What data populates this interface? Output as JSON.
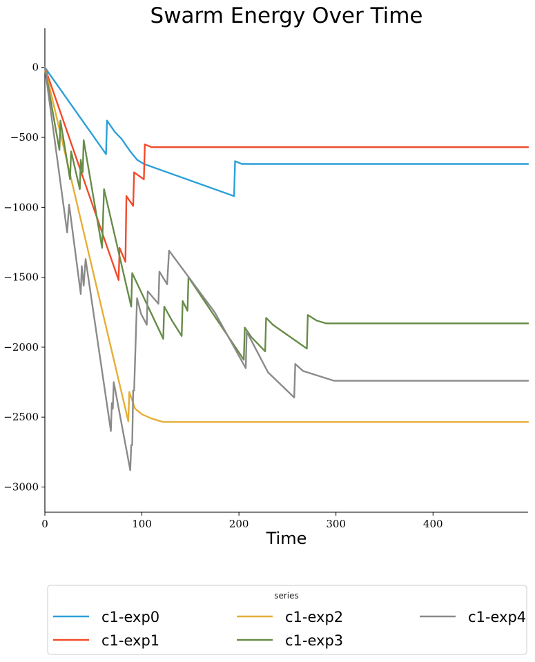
{
  "chart_data": {
    "type": "line",
    "title": "Swarm Energy Over Time",
    "xlabel": "Time",
    "ylabel": "",
    "xlim": [
      0,
      498
    ],
    "ylim": [
      -3180,
      280
    ],
    "xticks": [
      0,
      100,
      200,
      300,
      400
    ],
    "yticks": [
      0,
      -500,
      -1000,
      -1500,
      -2000,
      -2500,
      -3000
    ],
    "xtick_labels": [
      "0",
      "100",
      "200",
      "300",
      "400"
    ],
    "ytick_labels": [
      "0",
      "−500",
      "−1000",
      "−1500",
      "−2000",
      "−2500",
      "−3000"
    ],
    "grid": false,
    "legend": {
      "title": "series",
      "placement": "below plot",
      "columns": 3
    },
    "series": [
      {
        "name": "c1-exp0",
        "color": "#2ca0d8",
        "points": [
          [
            0,
            0
          ],
          [
            63,
            -620
          ],
          [
            64,
            -380
          ],
          [
            72,
            -460
          ],
          [
            79,
            -510
          ],
          [
            88,
            -600
          ],
          [
            95,
            -660
          ],
          [
            102,
            -690
          ],
          [
            195,
            -920
          ],
          [
            196,
            -670
          ],
          [
            203,
            -690
          ],
          [
            498,
            -690
          ]
        ]
      },
      {
        "name": "c1-exp1",
        "color": "#f24a2a",
        "points": [
          [
            0,
            0
          ],
          [
            76,
            -1520
          ],
          [
            77,
            -1290
          ],
          [
            83,
            -1390
          ],
          [
            84,
            -920
          ],
          [
            91,
            -990
          ],
          [
            92,
            -750
          ],
          [
            102,
            -800
          ],
          [
            103,
            -550
          ],
          [
            110,
            -570
          ],
          [
            498,
            -570
          ]
        ]
      },
      {
        "name": "c1-exp2",
        "color": "#e6ae35",
        "points": [
          [
            0,
            0
          ],
          [
            86,
            -2530
          ],
          [
            87,
            -2320
          ],
          [
            93,
            -2440
          ],
          [
            100,
            -2480
          ],
          [
            110,
            -2510
          ],
          [
            122,
            -2535
          ],
          [
            498,
            -2535
          ]
        ]
      },
      {
        "name": "c1-exp3",
        "color": "#678c48",
        "points": [
          [
            0,
            0
          ],
          [
            15,
            -590
          ],
          [
            16,
            -380
          ],
          [
            26,
            -800
          ],
          [
            27,
            -600
          ],
          [
            36,
            -870
          ],
          [
            37,
            -660
          ],
          [
            39,
            -750
          ],
          [
            40,
            -520
          ],
          [
            59,
            -1290
          ],
          [
            61,
            -870
          ],
          [
            89,
            -1710
          ],
          [
            90,
            -1470
          ],
          [
            122,
            -1940
          ],
          [
            123,
            -1710
          ],
          [
            131,
            -1810
          ],
          [
            141,
            -1920
          ],
          [
            142,
            -1670
          ],
          [
            147,
            -1740
          ],
          [
            148,
            -1500
          ],
          [
            205,
            -2090
          ],
          [
            206,
            -1860
          ],
          [
            213,
            -1930
          ],
          [
            227,
            -2030
          ],
          [
            228,
            -1790
          ],
          [
            235,
            -1840
          ],
          [
            270,
            -2010
          ],
          [
            271,
            -1770
          ],
          [
            280,
            -1810
          ],
          [
            290,
            -1830
          ],
          [
            498,
            -1830
          ]
        ]
      },
      {
        "name": "c1-exp4",
        "color": "#8a8a8a",
        "points": [
          [
            0,
            0
          ],
          [
            23,
            -1180
          ],
          [
            25,
            -980
          ],
          [
            37,
            -1620
          ],
          [
            38,
            -1420
          ],
          [
            40,
            -1560
          ],
          [
            42,
            -1370
          ],
          [
            68,
            -2600
          ],
          [
            69,
            -2400
          ],
          [
            70,
            -2440
          ],
          [
            71,
            -2250
          ],
          [
            88,
            -2880
          ],
          [
            89,
            -2700
          ],
          [
            90,
            -2700
          ],
          [
            91,
            -2310
          ],
          [
            92,
            -2310
          ],
          [
            95,
            -1650
          ],
          [
            99,
            -1760
          ],
          [
            105,
            -1840
          ],
          [
            106,
            -1600
          ],
          [
            117,
            -1690
          ],
          [
            118,
            -1460
          ],
          [
            126,
            -1550
          ],
          [
            128,
            -1310
          ],
          [
            175,
            -1750
          ],
          [
            207,
            -2150
          ],
          [
            208,
            -1890
          ],
          [
            230,
            -2180
          ],
          [
            257,
            -2360
          ],
          [
            258,
            -2120
          ],
          [
            266,
            -2170
          ],
          [
            298,
            -2240
          ],
          [
            498,
            -2240
          ]
        ]
      }
    ]
  }
}
